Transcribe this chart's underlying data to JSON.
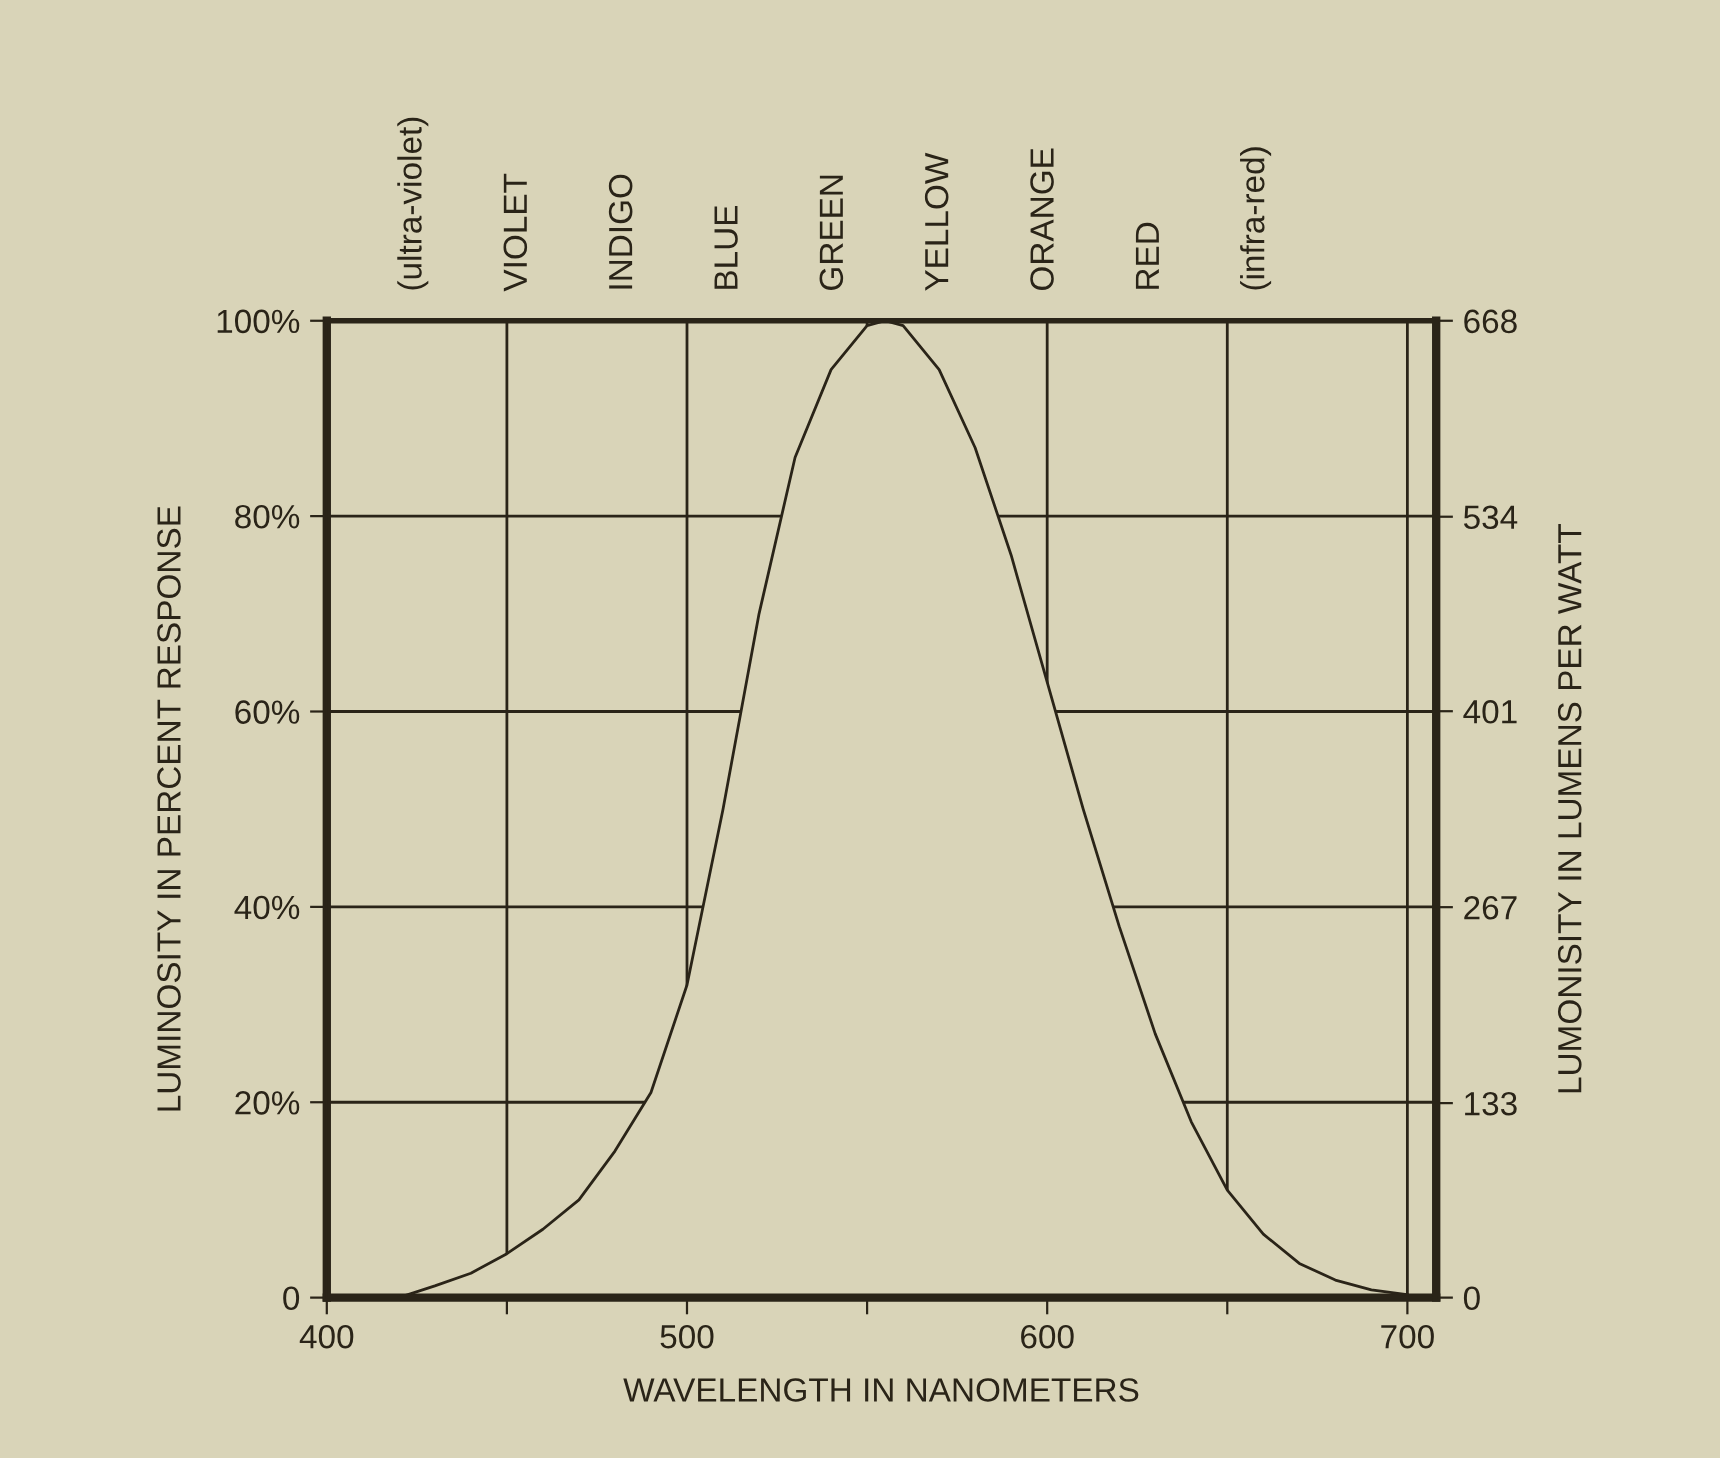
{
  "chart_data": {
    "type": "area",
    "xlabel": "WAVELENGTH IN NANOMETERS",
    "ylabel": "LUMINOSITY IN PERCENT RESPONSE",
    "y2label": "LUMONISITY IN LUMENS PER WATT",
    "annotations": [
      "(ultra-violet)",
      "VIOLET",
      "INDIGO",
      "BLUE",
      "GREEN",
      "YELLOW",
      "ORANGE",
      "RED",
      "(infra-red)"
    ],
    "x": [
      420,
      430,
      440,
      450,
      460,
      470,
      480,
      490,
      500,
      510,
      520,
      530,
      540,
      550,
      555,
      560,
      570,
      580,
      590,
      600,
      610,
      620,
      630,
      640,
      650,
      660,
      670,
      680,
      690,
      700
    ],
    "series": [
      {
        "color": "#d9d4b8",
        "values": [
          0,
          1.2,
          2.5,
          4.5,
          7,
          10,
          15,
          21,
          32,
          50,
          70,
          86,
          95,
          99.5,
          100,
          99.5,
          95,
          87,
          76,
          63,
          50,
          38,
          27,
          18,
          11,
          6.5,
          3.5,
          1.8,
          0.8,
          0.3
        ]
      }
    ],
    "xlim": [
      400,
      708
    ],
    "xticks": [
      400,
      {
        "value": 450,
        "label": null
      },
      500,
      {
        "value": 550,
        "label": null
      },
      600,
      {
        "value": 650,
        "label": null
      },
      700
    ],
    "ylim": [
      0,
      100
    ],
    "yticks": [
      0,
      {
        "value": 20,
        "label": "20%"
      },
      {
        "value": 40,
        "label": "40%"
      },
      {
        "value": 60,
        "label": "60%"
      },
      {
        "value": 80,
        "label": "80%"
      },
      {
        "value": 100,
        "label": "100%"
      }
    ],
    "y2lim": [
      0,
      668
    ],
    "y2ticks": [
      0,
      133,
      267,
      401,
      534,
      668
    ],
    "grid": true
  }
}
